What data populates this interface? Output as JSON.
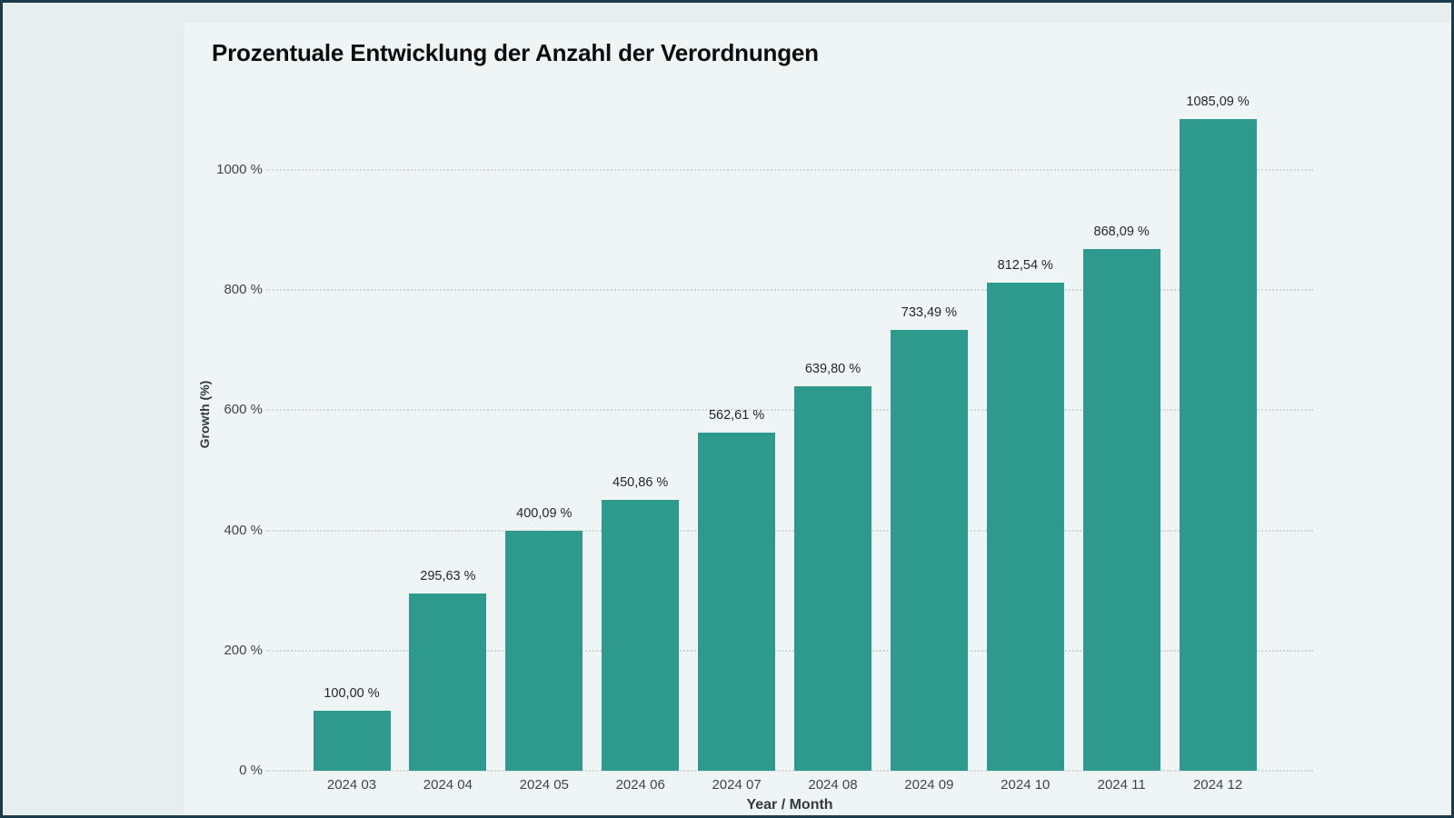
{
  "window": {
    "border_color": "#1e3948",
    "page_bg": "#e6efee",
    "card_bg": "#eef5f4"
  },
  "chart_data": {
    "type": "bar",
    "title": "Prozentuale Entwicklung der Anzahl der Verordnungen",
    "xlabel": "Year / Month",
    "ylabel": "Growth (%)",
    "categories": [
      "2024 03",
      "2024 04",
      "2024 05",
      "2024 06",
      "2024 07",
      "2024 08",
      "2024 09",
      "2024 10",
      "2024 11",
      "2024 12"
    ],
    "values": [
      100.0,
      295.63,
      400.09,
      450.86,
      562.61,
      639.8,
      733.49,
      812.54,
      868.09,
      1085.09
    ],
    "value_labels": [
      "100,00 %",
      "295,63 %",
      "400,09 %",
      "450,86 %",
      "562,61 %",
      "639,80 %",
      "733,49 %",
      "812,54 %",
      "868,09 %",
      "1085,09 %"
    ],
    "yticks": [
      {
        "value": 0,
        "label": "0 %"
      },
      {
        "value": 200,
        "label": "200 %"
      },
      {
        "value": 400,
        "label": "400 %"
      },
      {
        "value": 600,
        "label": "600 %"
      },
      {
        "value": 800,
        "label": "800 %"
      },
      {
        "value": 1000,
        "label": "1000 %"
      }
    ],
    "ylim": [
      0,
      1100
    ],
    "grid": "horizontal-dotted",
    "legend": "none",
    "bar_color": "#2e9a8d"
  }
}
